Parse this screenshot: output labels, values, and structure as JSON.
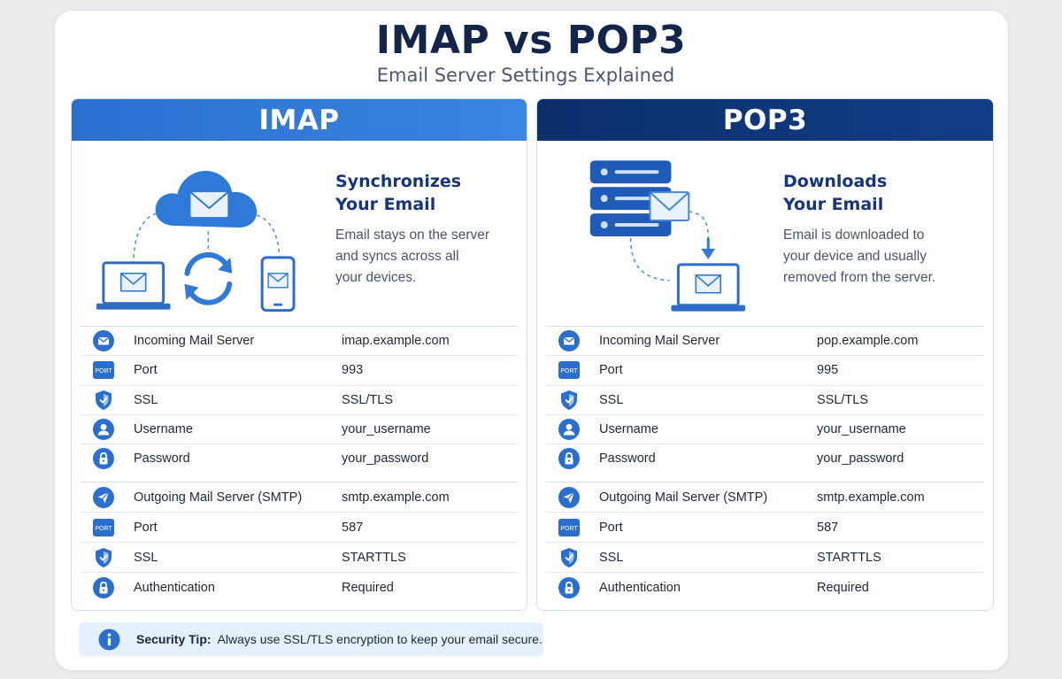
{
  "header": {
    "title": "IMAP vs POP3",
    "subtitle": "Email Server Settings Explained"
  },
  "colors": {
    "imap_accent": "#2f7ad8",
    "pop_accent": "#0e3577",
    "icon_blue": "#2a6fd0",
    "tip_background": "#e6f0fc"
  },
  "imap": {
    "heading": "IMAP",
    "desc_title_1": "Synchronizes",
    "desc_title_2": "Your Email",
    "desc_line_1": "Email stays on the server",
    "desc_line_2": "and syncs across all",
    "desc_line_3": "your devices.",
    "incoming": [
      {
        "icon": "envelope-icon",
        "label": "Incoming Mail Server",
        "value": "imap.example.com"
      },
      {
        "icon": "port-icon",
        "icon_text": "PORT",
        "label": "Port",
        "value": "993"
      },
      {
        "icon": "shield-icon",
        "label": "SSL",
        "value": "SSL/TLS"
      },
      {
        "icon": "user-icon",
        "label": "Username",
        "value": "your_username"
      },
      {
        "icon": "lock-icon",
        "label": "Password",
        "value": "your_password"
      }
    ],
    "outgoing": [
      {
        "icon": "send-icon",
        "label": "Outgoing Mail Server (SMTP)",
        "value": "smtp.example.com"
      },
      {
        "icon": "port-icon",
        "icon_text": "PORT",
        "label": "Port",
        "value": "587"
      },
      {
        "icon": "shield-icon",
        "label": "SSL",
        "value": "STARTTLS"
      },
      {
        "icon": "lock-icon",
        "label": "Authentication",
        "value": "Required"
      }
    ]
  },
  "pop3": {
    "heading": "POP3",
    "desc_title_1": "Downloads",
    "desc_title_2": "Your Email",
    "desc_line_1": "Email is downloaded to",
    "desc_line_2": "your device and usually",
    "desc_line_3": "removed from the server.",
    "incoming": [
      {
        "icon": "envelope-icon",
        "label": "Incoming Mail Server",
        "value": "pop.example.com"
      },
      {
        "icon": "port-icon",
        "icon_text": "PORT",
        "label": "Port",
        "value": "995"
      },
      {
        "icon": "shield-icon",
        "label": "SSL",
        "value": "SSL/TLS"
      },
      {
        "icon": "user-icon",
        "label": "Username",
        "value": "your_username"
      },
      {
        "icon": "lock-icon",
        "label": "Password",
        "value": "your_password"
      }
    ],
    "outgoing": [
      {
        "icon": "send-icon",
        "label": "Outgoing Mail Server (SMTP)",
        "value": "smtp.example.com"
      },
      {
        "icon": "port-icon",
        "icon_text": "PORT",
        "label": "Port",
        "value": "587"
      },
      {
        "icon": "shield-icon",
        "label": "SSL",
        "value": "STARTTLS"
      },
      {
        "icon": "lock-icon",
        "label": "Authentication",
        "value": "Required"
      }
    ]
  },
  "tip": {
    "label": "Security Tip:",
    "text": "Always use SSL/TLS encryption to keep your email secure."
  }
}
